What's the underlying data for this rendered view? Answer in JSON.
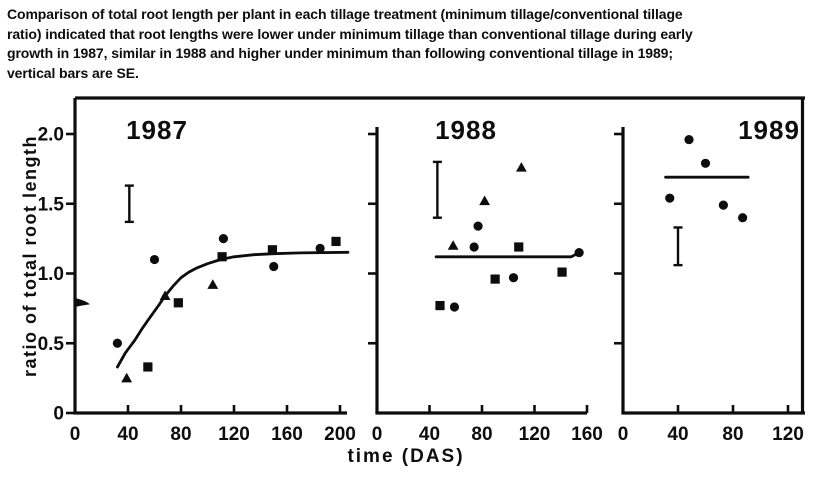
{
  "caption": {
    "lines": [
      "Comparison of total root length per plant in each tillage treatment (minimum tillage/conventional tillage",
      "ratio) indicated that root lengths were lower under minimum tillage than conventional tillage during early",
      "growth in 1987, similar in 1988 and higher under minimum than following conventional tillage in 1989;",
      "vertical bars are SE."
    ]
  },
  "axes": {
    "ylabel": "ratio of total root length",
    "xlabel": "time (DAS)"
  },
  "colors": {
    "ink": "#0d0d0d",
    "background": "#ffffff"
  },
  "chart_data": [
    {
      "type": "scatter",
      "title": "1987",
      "xlim": [
        0,
        205
      ],
      "ylim": [
        0,
        2.26
      ],
      "grid": false,
      "legend": "none",
      "xticks": [
        0,
        40,
        80,
        120,
        160,
        200
      ],
      "xtick_labels": [
        "0",
        "40",
        "80",
        "120",
        "160",
        "200"
      ],
      "yticks": [
        0,
        0.5,
        1.0,
        1.5,
        2.0
      ],
      "ytick_labels": [
        "0",
        "0.5",
        "1.0",
        "1.5",
        "2.0"
      ],
      "series": [
        {
          "name": "circle-markers",
          "marker": "circle",
          "points": [
            [
              32,
              0.5
            ],
            [
              60,
              1.1
            ],
            [
              112,
              1.25
            ],
            [
              150,
              1.05
            ],
            [
              185,
              1.18
            ]
          ]
        },
        {
          "name": "square-markers",
          "marker": "square",
          "points": [
            [
              55,
              0.33
            ],
            [
              78,
              0.79
            ],
            [
              111,
              1.12
            ],
            [
              149,
              1.17
            ],
            [
              197,
              1.23
            ]
          ]
        },
        {
          "name": "triangle-markers",
          "marker": "triangle",
          "points": [
            [
              39,
              0.25
            ],
            [
              68,
              0.84
            ],
            [
              104,
              0.92
            ]
          ]
        }
      ],
      "line_points": [
        [
          32,
          0.33
        ],
        [
          38,
          0.43
        ],
        [
          45,
          0.52
        ],
        [
          51,
          0.61
        ],
        [
          57,
          0.69
        ],
        [
          63,
          0.77
        ],
        [
          68,
          0.84
        ],
        [
          74,
          0.91
        ],
        [
          80,
          0.97
        ],
        [
          86,
          1.01
        ],
        [
          92,
          1.04
        ],
        [
          100,
          1.07
        ],
        [
          110,
          1.1
        ],
        [
          120,
          1.12
        ],
        [
          135,
          1.135
        ],
        [
          150,
          1.142
        ],
        [
          170,
          1.148
        ],
        [
          206,
          1.152
        ]
      ],
      "se_bar": {
        "x": 41,
        "y_low": 1.37,
        "y_high": 1.63
      },
      "axis_break_y": 0.79
    },
    {
      "type": "scatter",
      "title": "1988",
      "xlim": [
        0,
        160
      ],
      "ylim": [
        0,
        2.26
      ],
      "grid": false,
      "legend": "none",
      "xticks": [
        0,
        40,
        80,
        120,
        160
      ],
      "xtick_labels": [
        "0",
        "40",
        "80",
        "120",
        "160"
      ],
      "yticks": [
        0.5,
        1.0,
        1.5,
        2.0
      ],
      "ytick_labels": null,
      "series": [
        {
          "name": "circle-markers",
          "marker": "circle",
          "points": [
            [
              59,
              0.76
            ],
            [
              74,
              1.19
            ],
            [
              77,
              1.34
            ],
            [
              104,
              0.97
            ],
            [
              154,
              1.15
            ]
          ]
        },
        {
          "name": "square-markers",
          "marker": "square",
          "points": [
            [
              48,
              0.77
            ],
            [
              90,
              0.96
            ],
            [
              108,
              1.19
            ],
            [
              141,
              1.01
            ]
          ]
        },
        {
          "name": "triangle-markers",
          "marker": "triangle",
          "points": [
            [
              58,
              1.2
            ],
            [
              82,
              1.52
            ],
            [
              110,
              1.76
            ]
          ]
        }
      ],
      "line_points": [
        [
          45,
          1.12
        ],
        [
          148,
          1.12
        ],
        [
          154,
          1.15
        ]
      ],
      "se_bar": {
        "x": 46,
        "y_low": 1.4,
        "y_high": 1.8
      },
      "axis_break_y": null
    },
    {
      "type": "scatter",
      "title": "1989",
      "xlim": [
        0,
        132
      ],
      "ylim": [
        0,
        2.26
      ],
      "grid": false,
      "legend": "none",
      "xticks": [
        0,
        40,
        80,
        120
      ],
      "xtick_labels": [
        "0",
        "40",
        "80",
        "120"
      ],
      "yticks": [
        0.5,
        1.0,
        1.5,
        2.0
      ],
      "ytick_labels": null,
      "series": [
        {
          "name": "circle-markers",
          "marker": "circle",
          "points": [
            [
              34,
              1.54
            ],
            [
              48,
              1.96
            ],
            [
              60,
              1.79
            ],
            [
              73,
              1.49
            ],
            [
              87,
              1.4
            ]
          ]
        }
      ],
      "line_points": [
        [
          31,
          1.69
        ],
        [
          91,
          1.69
        ]
      ],
      "se_bar": {
        "x": 40,
        "y_low": 1.06,
        "y_high": 1.33
      },
      "axis_break_y": null
    }
  ]
}
